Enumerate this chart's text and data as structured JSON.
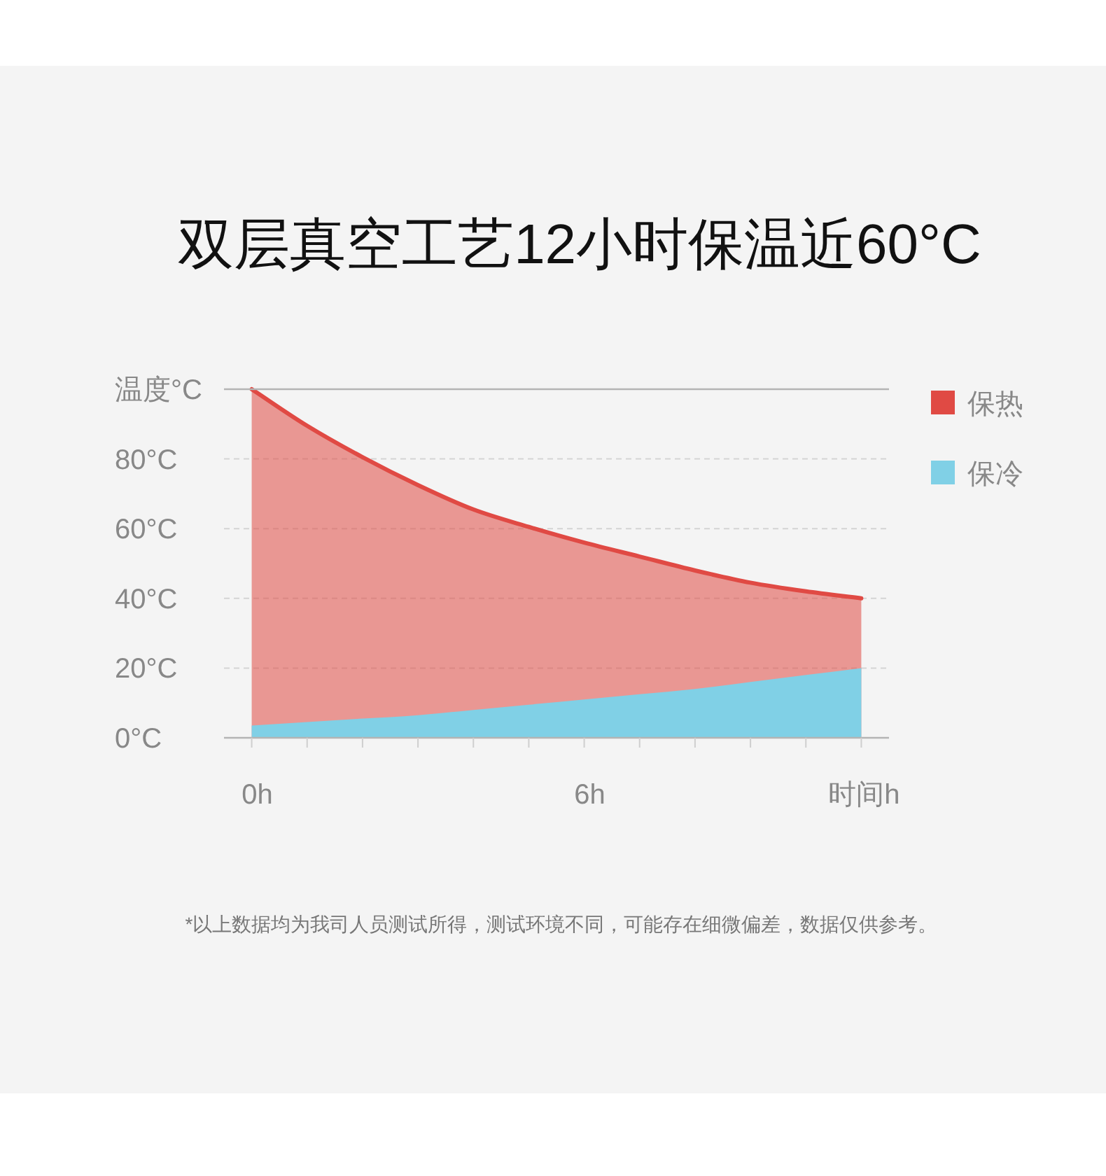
{
  "chart_data": {
    "type": "area",
    "title": "双层真空工艺12小时保温近60°C",
    "xlabel": "时间h",
    "ylabel": "温度°C",
    "annotations": [
      "*以上数据均为我司人员测试所得，测试环境不同，可能存在细微偏差，数据仅供参考。"
    ],
    "x": [
      0,
      1,
      2,
      3,
      4,
      5,
      6,
      7,
      8,
      9,
      10,
      11
    ],
    "series": [
      {
        "name": "保热",
        "color": "#e04a44",
        "line_style": "solid",
        "values": [
          100,
          89.5,
          80.5,
          72.5,
          65.5,
          60.5,
          56,
          52,
          48,
          44.5,
          42,
          40
        ]
      },
      {
        "name": "保冷",
        "color": "#80d0e6",
        "values": [
          3.5,
          4.5,
          5.5,
          6.5,
          8,
          9.5,
          11,
          12.5,
          14,
          16,
          18,
          20
        ]
      }
    ],
    "xlim": [
      -0.5,
      11.5
    ],
    "xticks": [
      {
        "value": 0,
        "label": "0h"
      },
      {
        "value": 1,
        "label": null
      },
      {
        "value": 2,
        "label": null
      },
      {
        "value": 3,
        "label": null
      },
      {
        "value": 4,
        "label": null
      },
      {
        "value": 5,
        "label": null
      },
      {
        "value": 6,
        "label": "6h"
      },
      {
        "value": 7,
        "label": null
      },
      {
        "value": 8,
        "label": null
      },
      {
        "value": 9,
        "label": null
      },
      {
        "value": 10,
        "label": null
      },
      {
        "value": 11,
        "label": null
      }
    ],
    "ylim": [
      0,
      100
    ],
    "yticks": [
      {
        "value": 0,
        "label": "0°C"
      },
      {
        "value": 20,
        "label": "20°C"
      },
      {
        "value": 40,
        "label": "40°C"
      },
      {
        "value": 60,
        "label": "60°C"
      },
      {
        "value": 80,
        "label": "80°C"
      }
    ],
    "grid": "y",
    "legend": "right"
  }
}
